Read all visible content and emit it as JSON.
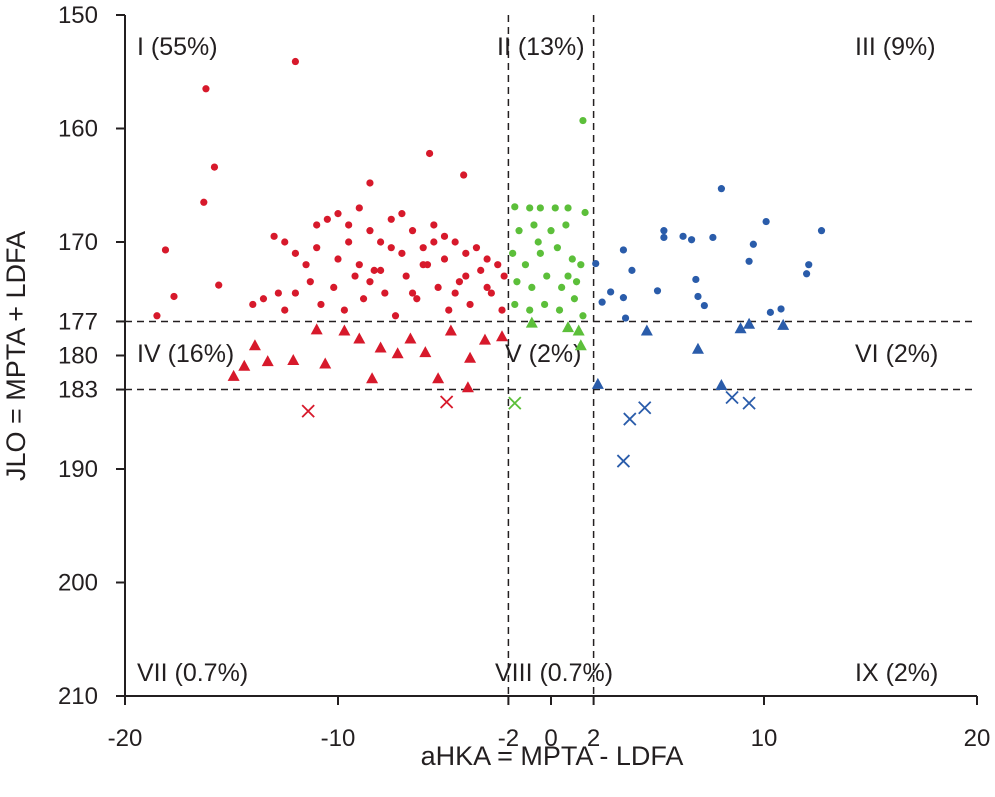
{
  "chart_data": {
    "type": "scatter",
    "x_label": "aHKA = MPTA - LDFA",
    "y_label": "JLO = MPTA + LDFA",
    "xlim": [
      -20,
      20
    ],
    "ylim": [
      150,
      210
    ],
    "y_inverted": true,
    "xticks": [
      -20,
      -10,
      -2,
      0,
      2,
      10,
      20
    ],
    "yticks": [
      150,
      160,
      170,
      177,
      180,
      183,
      190,
      200,
      210
    ],
    "vlines": [
      -2,
      2
    ],
    "hlines": [
      177,
      183
    ],
    "annotations": [
      "I (55%)",
      "II (13%)",
      "III (9%)",
      "IV (16%)",
      "V (2%)",
      "VI (2%)",
      "VII (0.7%)",
      "VIII (0.7%)",
      "IX (2%)"
    ],
    "series": [
      {
        "color": "#d7192b",
        "marker": "circle",
        "x": [
          -12.0,
          -16.2,
          -15.8,
          -16.3,
          -18.1,
          -15.6,
          -17.7,
          -18.5,
          -5.7,
          -4.1,
          -8.5,
          -13,
          -12.5,
          -12,
          -11.5,
          -11,
          -10.5,
          -10,
          -9.5,
          -9,
          -8.5,
          -8,
          -7.5,
          -7,
          -6.5,
          -6,
          -5.5,
          -5,
          -4.5,
          -4,
          -3.5,
          -3,
          -2.5,
          -2.2,
          -13.5,
          -12.8,
          -12,
          -11.3,
          -10.8,
          -10.2,
          -9.7,
          -9.2,
          -8.8,
          -8.3,
          -7.8,
          -7.3,
          -6.8,
          -6.3,
          -5.8,
          -5.3,
          -4.8,
          -4.3,
          -3.8,
          -3.3,
          -2.8,
          -2.3,
          -10,
          -9,
          -8,
          -7,
          -6,
          -5,
          -4,
          -9.5,
          -7.5,
          -5.5,
          -11,
          -8.5,
          -6.5,
          -4.5,
          -3,
          -12.5,
          -14
        ],
        "values": [
          154.1,
          156.5,
          163.4,
          166.5,
          170.7,
          173.8,
          174.8,
          176.5,
          162.2,
          164.1,
          164.8,
          169.5,
          170,
          171,
          172,
          170.5,
          168,
          167.5,
          168.5,
          167,
          169,
          170,
          168,
          167.5,
          169,
          170.5,
          168.5,
          169.5,
          170,
          171,
          170.5,
          171.5,
          172,
          173,
          175,
          174.5,
          174.5,
          173.5,
          175.5,
          174,
          176,
          173,
          175,
          172.5,
          174.5,
          176.5,
          173,
          175,
          172,
          174,
          176,
          173.5,
          175.5,
          172.5,
          174.5,
          176,
          171.5,
          172,
          172.5,
          171,
          172,
          171.5,
          173,
          170,
          170.5,
          170,
          168.5,
          173.5,
          174.5,
          174.5,
          174,
          176,
          175.5
        ]
      },
      {
        "color": "#d7192b",
        "marker": "triangle",
        "x": [
          -11.0,
          -14.9,
          -14.4,
          -13.3,
          -12.1,
          -10.6,
          -9.7,
          -8.4,
          -7.2,
          -6.6,
          -5.3,
          -3.9,
          -3.1,
          -2.3,
          -3.8,
          -4.7,
          -9.0,
          -8.0,
          -13.9,
          -5.9
        ],
        "values": [
          177.7,
          181.8,
          180.9,
          180.5,
          180.4,
          180.7,
          177.8,
          182.0,
          179.8,
          178.5,
          182.0,
          182.8,
          178.6,
          178.3,
          180.2,
          177.8,
          178.5,
          179.3,
          179.1,
          179.7
        ]
      },
      {
        "color": "#d7192b",
        "marker": "cross",
        "x": [
          -11.4,
          -4.9
        ],
        "values": [
          184.9,
          184.1
        ]
      },
      {
        "color": "#5cbf3a",
        "marker": "circle",
        "x": [
          1.5,
          -1.7,
          -1.0,
          -0.5,
          0.2,
          0.8,
          1.6,
          -1.5,
          -0.8,
          0,
          0.7,
          -1.8,
          -1.2,
          -0.5,
          0.3,
          1,
          1.4,
          -1.6,
          -0.9,
          -0.2,
          0.5,
          1.2,
          -1.7,
          -1.0,
          -0.3,
          0.4,
          1.1,
          1.5,
          -0.6,
          0.8
        ],
        "values": [
          159.3,
          166.9,
          167.0,
          167.0,
          167.0,
          167.0,
          167.4,
          169,
          168.5,
          169,
          168.5,
          171,
          172,
          171,
          170.5,
          171.5,
          172,
          173.5,
          174,
          173,
          174,
          173.5,
          175.5,
          176,
          175.5,
          176,
          175,
          176.5,
          170,
          173
        ]
      },
      {
        "color": "#5cbf3a",
        "marker": "triangle",
        "x": [
          -0.9,
          0.8,
          1.3,
          1.4
        ],
        "values": [
          177.1,
          177.5,
          177.8,
          179.1
        ]
      },
      {
        "color": "#5cbf3a",
        "marker": "cross",
        "x": [
          -1.7
        ],
        "values": [
          184.2
        ]
      },
      {
        "color": "#2a5caa",
        "marker": "circle",
        "x": [
          8.0,
          10.1,
          12.7,
          5.3,
          5.3,
          6.2,
          6.6,
          7.6,
          9.5,
          3.4,
          2.1,
          3.8,
          9.3,
          12.1,
          12.0,
          6.8,
          5.0,
          2.8,
          2.4,
          3.4,
          6.9,
          7.2,
          10.3,
          10.8,
          3.5
        ],
        "values": [
          165.3,
          168.2,
          169.0,
          169.0,
          169.6,
          169.5,
          169.8,
          169.6,
          170.2,
          170.7,
          171.9,
          172.5,
          171.7,
          172.0,
          172.8,
          173.3,
          174.3,
          174.4,
          175.3,
          174.9,
          174.8,
          175.6,
          176.2,
          175.9,
          176.7
        ]
      },
      {
        "color": "#2a5caa",
        "marker": "triangle",
        "x": [
          4.5,
          6.9,
          8.9,
          9.3,
          10.9,
          2.2,
          8.0
        ],
        "values": [
          177.8,
          179.4,
          177.6,
          177.2,
          177.3,
          182.5,
          182.6
        ]
      },
      {
        "color": "#2a5caa",
        "marker": "cross",
        "x": [
          3.7,
          4.4,
          3.4,
          8.5,
          9.3
        ],
        "values": [
          185.6,
          184.6,
          189.3,
          183.7,
          184.2
        ]
      }
    ]
  }
}
